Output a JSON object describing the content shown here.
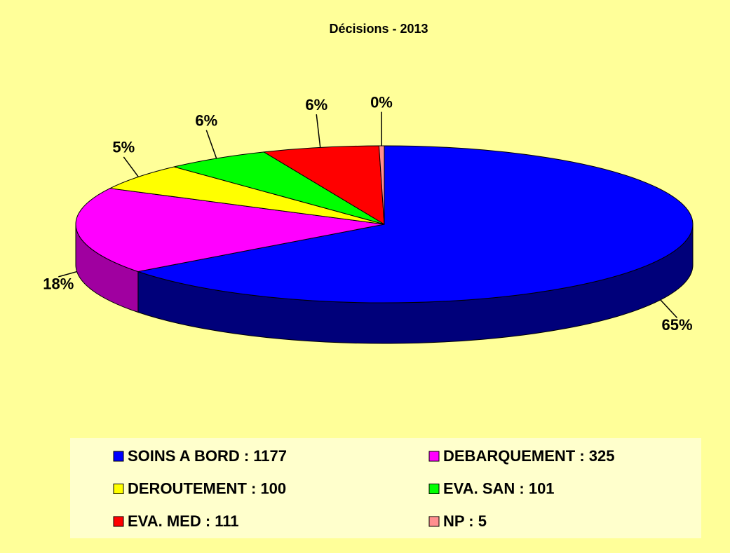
{
  "chart_data": {
    "type": "pie3d",
    "title": "Décisions - 2013",
    "categories": [
      "SOINS A BORD : 1177",
      "DEBARQUEMENT  : 325",
      "DEROUTEMENT : 100",
      "EVA. SAN :  101",
      "EVA. MED : 111",
      "NP : 5"
    ],
    "values": [
      64.706,
      17.867,
      5.497,
      5.552,
      6.102,
      0.275
    ],
    "value_labels": [
      "65%",
      "18%",
      "5%",
      "6%",
      "6%",
      "0%"
    ],
    "colors": [
      "#0000ff",
      "#ff00ff",
      "#ffff00",
      "#00ff00",
      "#ff0000",
      "#ff8f8f"
    ],
    "side_colors": [
      "#00007a",
      "#a000a0",
      "#a0a000",
      "#00a000",
      "#a00000",
      "#a05050"
    ]
  }
}
